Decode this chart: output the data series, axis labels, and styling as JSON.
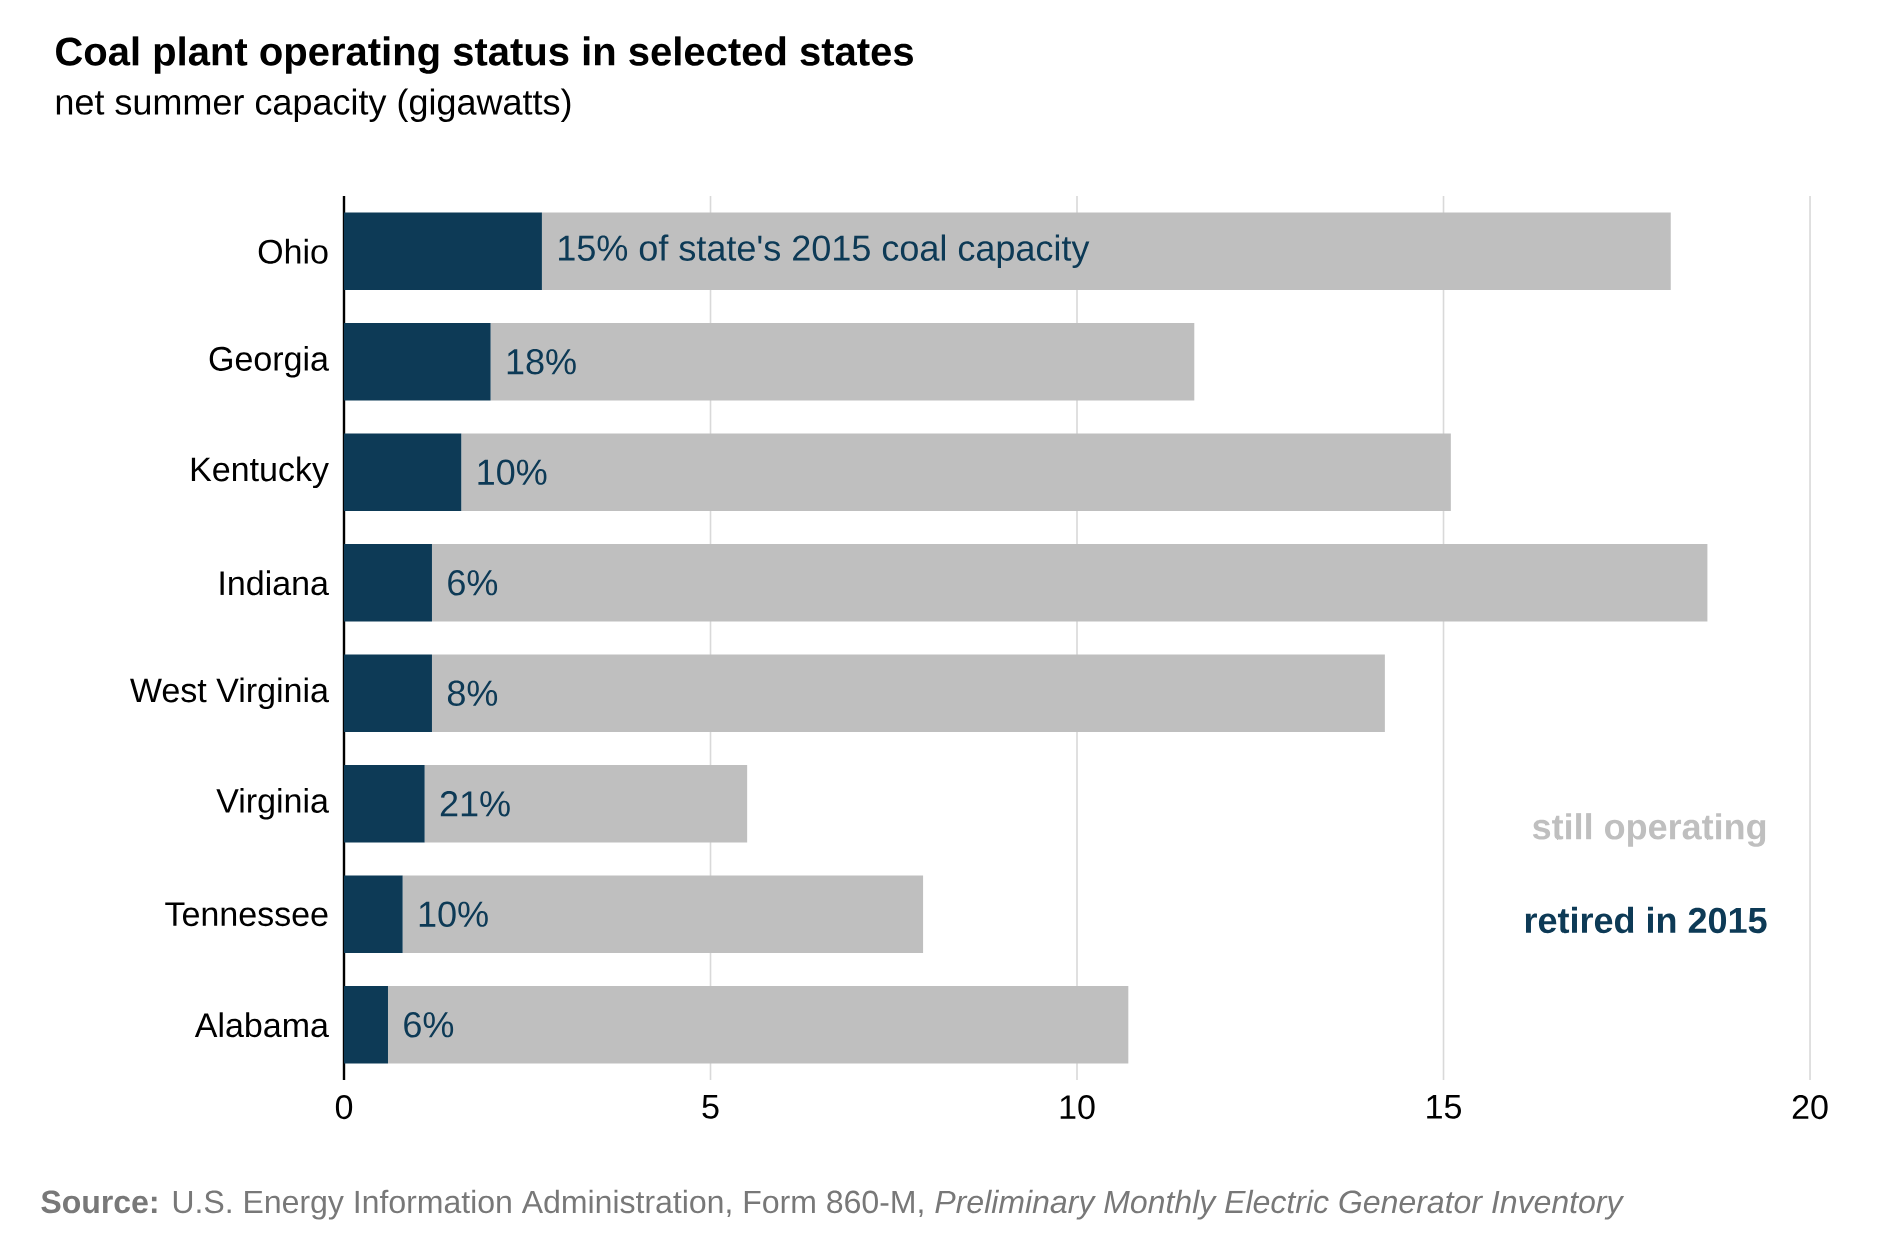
{
  "chart_data": {
    "type": "bar",
    "orientation": "horizontal",
    "stacked": true,
    "title": "Coal plant operating status in selected states",
    "subtitle": "net summer capacity (gigawatts)",
    "categories": [
      "Ohio",
      "Georgia",
      "Kentucky",
      "Indiana",
      "West Virginia",
      "Virginia",
      "Tennessee",
      "Alabama"
    ],
    "series": [
      {
        "name": "retired in 2015",
        "color": "#0d3a56",
        "values": [
          2.7,
          2.0,
          1.6,
          1.2,
          1.2,
          1.1,
          0.8,
          0.6
        ]
      },
      {
        "name": "still operating",
        "color": "#bfbfbf",
        "values": [
          15.4,
          9.6,
          13.5,
          17.4,
          13.0,
          4.4,
          7.1,
          10.1
        ]
      }
    ],
    "xlim": [
      0,
      20
    ],
    "xticks": [
      0,
      5,
      10,
      15,
      20
    ],
    "grid": "x",
    "legend": "bottom right",
    "annotations": [
      {
        "text": "15% of state's 2015 coal capacity",
        "x": 2.7,
        "y": "Ohio"
      },
      {
        "text": "18%",
        "x": 2.0,
        "y": "Georgia"
      },
      {
        "text": "10%",
        "x": 1.6,
        "y": "Kentucky"
      },
      {
        "text": "6%",
        "x": 1.2,
        "y": "Indiana"
      },
      {
        "text": "8%",
        "x": 1.2,
        "y": "West Virginia"
      },
      {
        "text": "21%",
        "x": 1.1,
        "y": "Virginia"
      },
      {
        "text": "10%",
        "x": 0.8,
        "y": "Tennessee"
      },
      {
        "text": "6%",
        "x": 0.6,
        "y": "Alabama"
      },
      "**Source:** U.S. Energy Information Administration, Form 860-M, *Preliminary Monthly Electric Generator Inventory*"
    ]
  }
}
